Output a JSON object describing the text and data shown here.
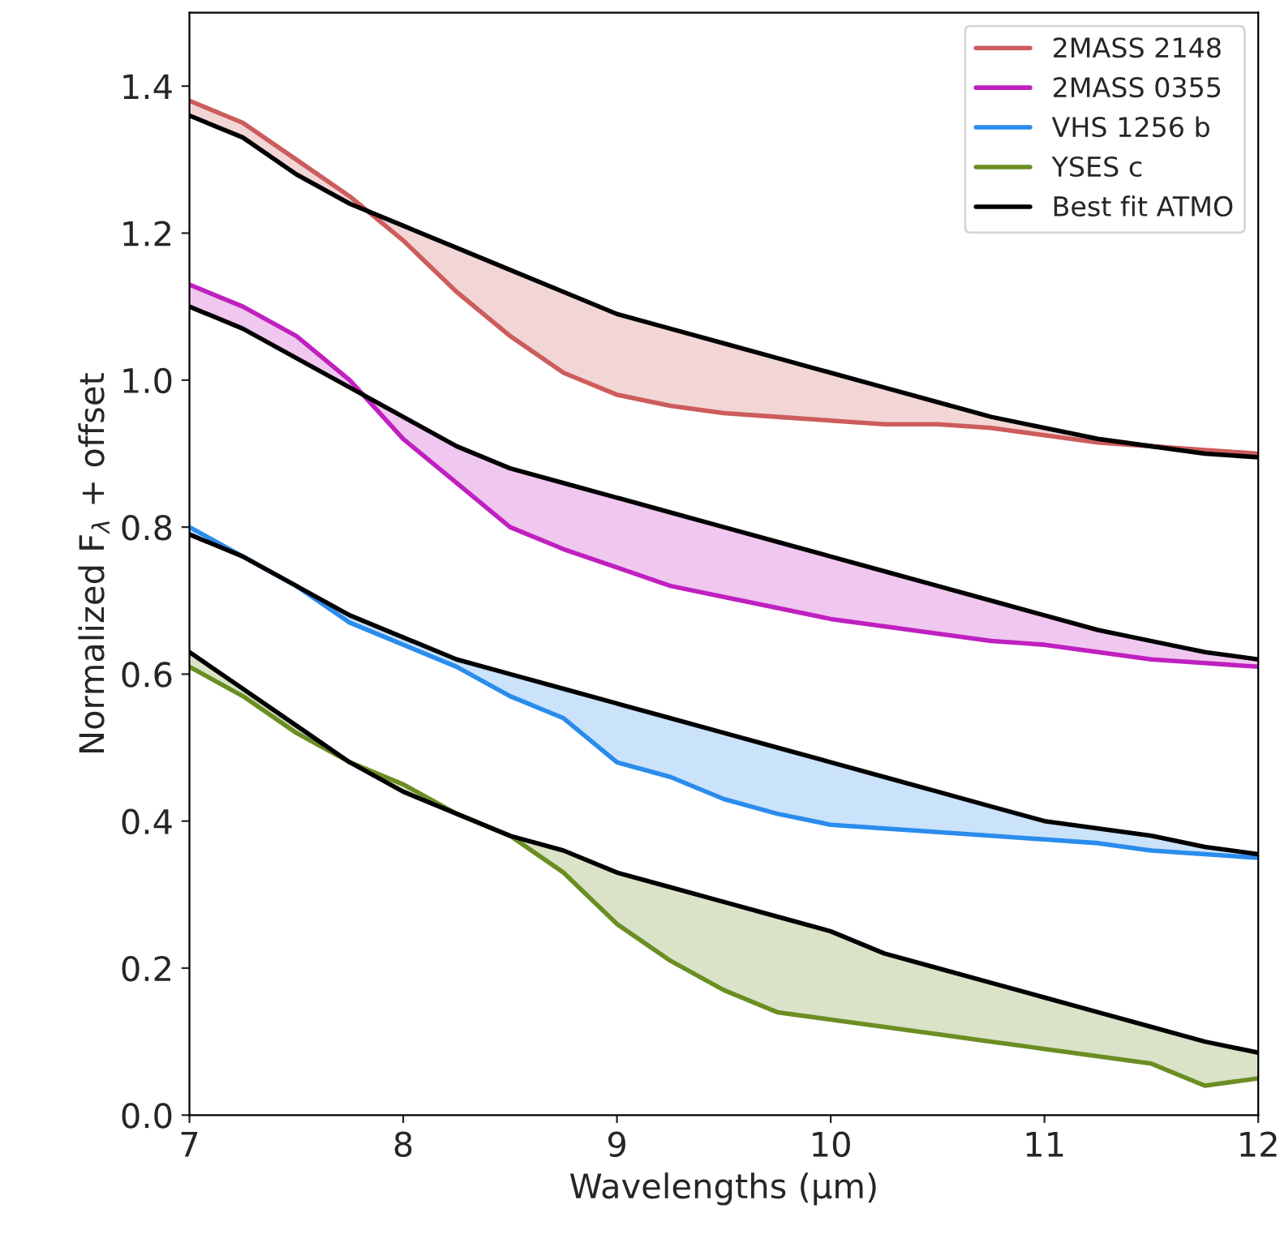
{
  "chart_data": {
    "type": "line",
    "xlabel": "Wavelengths (µm)",
    "ylabel": "Normalized F$_{λ}$ + offset",
    "x": [
      7,
      7.25,
      7.5,
      7.75,
      8,
      8.25,
      8.5,
      8.75,
      9,
      9.25,
      9.5,
      9.75,
      10,
      10.25,
      10.5,
      10.75,
      11,
      11.25,
      11.5,
      11.75,
      12
    ],
    "xlim": [
      7,
      12
    ],
    "xticks": [
      7,
      8,
      9,
      10,
      11,
      12
    ],
    "ylim": [
      0,
      1.5
    ],
    "yticks": [
      {
        "value": 0,
        "label": "0.0"
      },
      {
        "value": 0.2,
        "label": "0.2"
      },
      {
        "value": 0.4,
        "label": "0.4"
      },
      {
        "value": 0.6,
        "label": "0.6"
      },
      {
        "value": 0.8,
        "label": "0.8"
      },
      {
        "value": 1.0,
        "label": "1.0"
      },
      {
        "value": 1.2,
        "label": "1.2"
      },
      {
        "value": 1.4,
        "label": "1.4"
      }
    ],
    "grid": false,
    "legend": "top right",
    "marker": "none",
    "line_style": "solid",
    "series": [
      {
        "name": "2MASS 2148",
        "color": "#cd5c5c",
        "values": [
          1.38,
          1.35,
          1.3,
          1.25,
          1.19,
          1.12,
          1.06,
          1.01,
          0.98,
          0.965,
          0.955,
          0.95,
          0.945,
          0.94,
          0.94,
          0.935,
          0.925,
          0.915,
          0.91,
          0.905,
          0.9
        ],
        "lower": [
          1.38,
          1.35,
          1.3,
          1.25,
          1.19,
          1.12,
          1.06,
          1.01,
          0.98,
          0.965,
          0.955,
          0.95,
          0.945,
          0.94,
          0.94,
          0.935,
          0.925,
          0.915,
          0.91,
          0.905,
          0.9
        ],
        "upper": [
          1.36,
          1.33,
          1.28,
          1.24,
          1.21,
          1.18,
          1.15,
          1.12,
          1.09,
          1.07,
          1.05,
          1.03,
          1.01,
          0.99,
          0.97,
          0.95,
          0.935,
          0.92,
          0.91,
          0.9,
          0.895
        ]
      },
      {
        "name": "2MASS 0355",
        "color": "#c020c0",
        "values": [
          1.13,
          1.1,
          1.06,
          1.0,
          0.92,
          0.86,
          0.8,
          0.77,
          0.745,
          0.72,
          0.705,
          0.69,
          0.675,
          0.665,
          0.655,
          0.645,
          0.64,
          0.63,
          0.62,
          0.615,
          0.61
        ],
        "lower": [
          1.13,
          1.1,
          1.06,
          1.0,
          0.92,
          0.86,
          0.8,
          0.77,
          0.745,
          0.72,
          0.705,
          0.69,
          0.675,
          0.665,
          0.655,
          0.645,
          0.64,
          0.63,
          0.62,
          0.615,
          0.61
        ],
        "upper": [
          1.1,
          1.07,
          1.03,
          0.99,
          0.95,
          0.91,
          0.88,
          0.86,
          0.84,
          0.82,
          0.8,
          0.78,
          0.76,
          0.74,
          0.72,
          0.7,
          0.68,
          0.66,
          0.645,
          0.63,
          0.62
        ]
      },
      {
        "name": "VHS 1256 b",
        "color": "#2a8cec",
        "values": [
          0.8,
          0.76,
          0.72,
          0.67,
          0.64,
          0.61,
          0.57,
          0.54,
          0.48,
          0.46,
          0.43,
          0.41,
          0.395,
          0.39,
          0.385,
          0.38,
          0.375,
          0.37,
          0.36,
          0.355,
          0.35
        ],
        "lower": [
          0.8,
          0.76,
          0.72,
          0.67,
          0.64,
          0.61,
          0.57,
          0.54,
          0.48,
          0.46,
          0.43,
          0.41,
          0.395,
          0.39,
          0.385,
          0.38,
          0.375,
          0.37,
          0.36,
          0.355,
          0.35
        ],
        "upper": [
          0.79,
          0.76,
          0.72,
          0.68,
          0.65,
          0.62,
          0.6,
          0.58,
          0.56,
          0.54,
          0.52,
          0.5,
          0.48,
          0.46,
          0.44,
          0.42,
          0.4,
          0.39,
          0.38,
          0.365,
          0.355
        ]
      },
      {
        "name": "YSES c",
        "color": "#6b8e23",
        "values": [
          0.61,
          0.57,
          0.52,
          0.48,
          0.45,
          0.41,
          0.38,
          0.33,
          0.26,
          0.21,
          0.17,
          0.14,
          0.13,
          0.12,
          0.11,
          0.1,
          0.09,
          0.08,
          0.07,
          0.04,
          0.05
        ],
        "lower": [
          0.61,
          0.57,
          0.52,
          0.48,
          0.45,
          0.41,
          0.38,
          0.33,
          0.26,
          0.21,
          0.17,
          0.14,
          0.13,
          0.12,
          0.11,
          0.1,
          0.09,
          0.08,
          0.07,
          0.04,
          0.05
        ],
        "upper": [
          0.63,
          0.58,
          0.53,
          0.48,
          0.44,
          0.41,
          0.38,
          0.36,
          0.33,
          0.31,
          0.29,
          0.27,
          0.25,
          0.22,
          0.2,
          0.18,
          0.16,
          0.14,
          0.12,
          0.1,
          0.085
        ]
      },
      {
        "name": "Best fit ATMO",
        "color": "#000000",
        "values": [
          1.36,
          1.33,
          1.28,
          1.24,
          1.21,
          1.18,
          1.15,
          1.12,
          1.09,
          1.07,
          1.05,
          1.03,
          1.01,
          0.99,
          0.97,
          0.95,
          0.935,
          0.92,
          0.91,
          0.9,
          0.895
        ]
      },
      {
        "color": "#000000",
        "values": [
          1.1,
          1.07,
          1.03,
          0.99,
          0.95,
          0.91,
          0.88,
          0.86,
          0.84,
          0.82,
          0.8,
          0.78,
          0.76,
          0.74,
          0.72,
          0.7,
          0.68,
          0.66,
          0.645,
          0.63,
          0.62
        ]
      },
      {
        "color": "#000000",
        "values": [
          0.79,
          0.76,
          0.72,
          0.68,
          0.65,
          0.62,
          0.6,
          0.58,
          0.56,
          0.54,
          0.52,
          0.5,
          0.48,
          0.46,
          0.44,
          0.42,
          0.4,
          0.39,
          0.38,
          0.365,
          0.355
        ]
      },
      {
        "color": "#000000",
        "values": [
          0.63,
          0.58,
          0.53,
          0.48,
          0.44,
          0.41,
          0.38,
          0.36,
          0.33,
          0.31,
          0.29,
          0.27,
          0.25,
          0.22,
          0.2,
          0.18,
          0.16,
          0.14,
          0.12,
          0.1,
          0.085
        ]
      }
    ]
  }
}
